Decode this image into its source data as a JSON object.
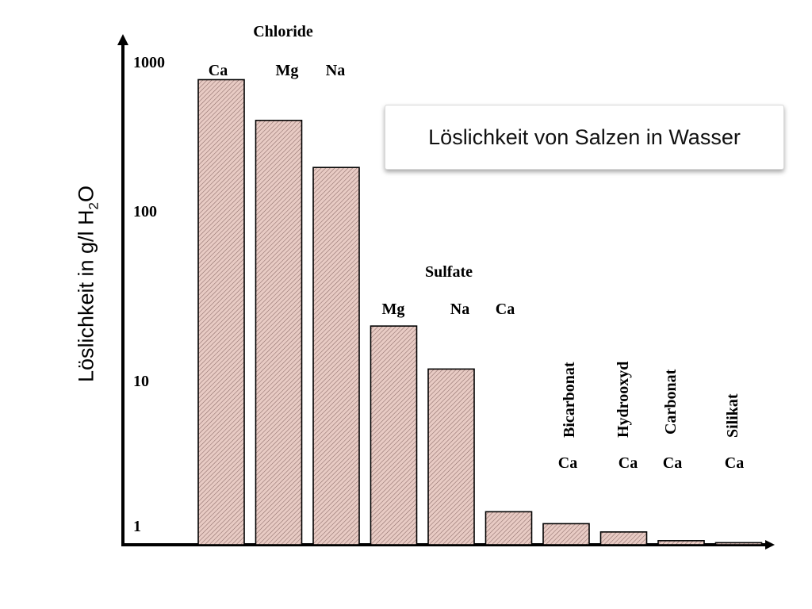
{
  "chart_data": {
    "type": "bar",
    "title": "Löslichkeit von Salzen in Wasser",
    "ylabel": {
      "text": "Löslichkeit in g/l H",
      "sub": "2",
      "suffix": "O"
    },
    "yscale": "log",
    "ylim": [
      1,
      1000
    ],
    "yticks": [
      "1000",
      "100",
      "10",
      "1"
    ],
    "groups": [
      {
        "name": "Chloride",
        "labels": [
          "Ca",
          "Mg",
          "Na"
        ],
        "values": [
          750,
          420,
          215
        ]
      },
      {
        "name": "Sulfate",
        "labels": [
          "Mg",
          "Na",
          "Ca"
        ],
        "values": [
          22.5,
          12.2,
          1.6
        ]
      },
      {
        "name": "Bicarbonat",
        "labels": [
          "Ca"
        ],
        "values": [
          1.35
        ]
      },
      {
        "name": "Hydrooxyd",
        "labels": [
          "Ca"
        ],
        "values": [
          1.2
        ]
      },
      {
        "name": "Carbonat",
        "labels": [
          "Ca"
        ],
        "values": [
          1.06
        ]
      },
      {
        "name": "Silikat",
        "labels": [
          "Ca"
        ],
        "values": [
          1.03
        ]
      }
    ],
    "bar_color": "#e8cbc4",
    "bar_stroke": "#000000",
    "grid": false
  }
}
